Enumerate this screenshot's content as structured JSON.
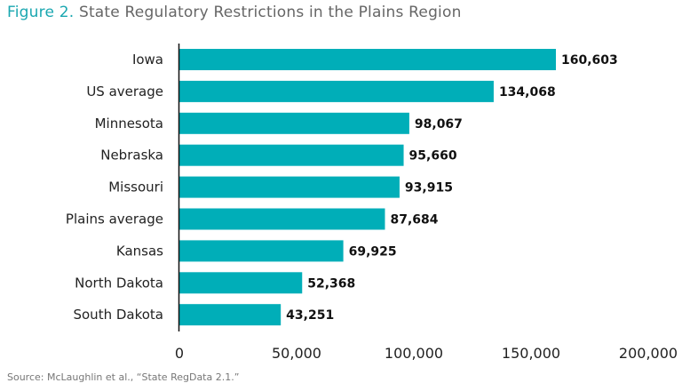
{
  "title": {
    "prefix": "Figure 2.",
    "text": "State Regulatory Restrictions in the Plains Region"
  },
  "source": "Source: McLaughlin et al., “State RegData 2.1.”",
  "colors": {
    "bar": "#00aeb8",
    "title_prefix": "#1aa7b0"
  },
  "chart_data": {
    "type": "bar",
    "orientation": "horizontal",
    "title": "Figure 2. State Regulatory Restrictions in the Plains Region",
    "categories": [
      "Iowa",
      "US average",
      "Minnesota",
      "Nebraska",
      "Missouri",
      "Plains average",
      "Kansas",
      "North Dakota",
      "South Dakota"
    ],
    "values": [
      160603,
      134068,
      98067,
      95660,
      93915,
      87684,
      69925,
      52368,
      43251
    ],
    "value_labels": [
      "160,603",
      "134,068",
      "98,067",
      "95,660",
      "93,915",
      "87,684",
      "69,925",
      "52,368",
      "43,251"
    ],
    "xlim": [
      0,
      200000
    ],
    "xticks": [
      0,
      50000,
      100000,
      150000,
      200000
    ],
    "xtick_labels": [
      "0",
      "50,000",
      "100,000",
      "150,000",
      "200,000"
    ],
    "grid": false,
    "xlabel": "",
    "ylabel": ""
  }
}
